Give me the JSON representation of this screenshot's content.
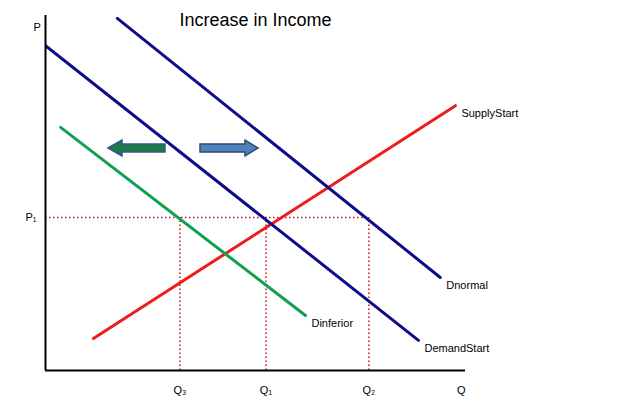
{
  "chart_data": {
    "type": "line",
    "title": "Increase in Income",
    "x_label": "Q",
    "y_label": "P",
    "xlim": [
      0,
      10
    ],
    "ylim": [
      0,
      10
    ],
    "xticks": [
      {
        "value": 3.2,
        "label": "Q₃"
      },
      {
        "value": 5.25,
        "label": "Q₁"
      },
      {
        "value": 7.7,
        "label": "Q₂"
      }
    ],
    "yticks": [
      {
        "value": 4.31,
        "label": "P₁"
      }
    ],
    "grid": false,
    "series": [
      {
        "name": "SupplyStart",
        "color": "#ee1c1c",
        "x": [
          1.14,
          9.76
        ],
        "values": [
          0.9,
          7.46
        ]
      },
      {
        "name": "Dnormal",
        "color": "#0d0d8c",
        "x": [
          1.71,
          9.4
        ],
        "values": [
          9.92,
          2.62
        ]
      },
      {
        "name": "DemandStart",
        "color": "#0d0d8c",
        "x": [
          0,
          8.88
        ],
        "values": [
          9.15,
          0.85
        ]
      },
      {
        "name": "Dinferior",
        "color": "#10a050",
        "x": [
          0.36,
          6.19
        ],
        "values": [
          6.85,
          1.55
        ]
      }
    ]
  }
}
